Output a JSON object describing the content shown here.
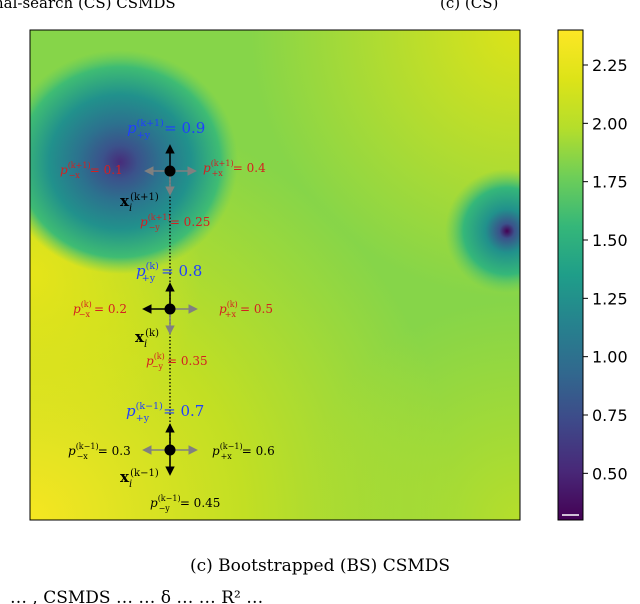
{
  "top_clip": {
    "left_text": "nal-search (CS) CSMDS",
    "right_text": "(c)         (CS)"
  },
  "colorbar": {
    "ticks": [
      "2.25",
      "2.00",
      "1.75",
      "1.50",
      "1.25",
      "1.00",
      "0.75",
      "0.50"
    ],
    "tick_values": [
      2.25,
      2.0,
      1.75,
      1.5,
      1.25,
      1.0,
      0.75,
      0.5
    ],
    "range": [
      0.3,
      2.4
    ],
    "colormap": "viridis"
  },
  "annotations": {
    "k_plus_1": {
      "p_up": "p",
      "p_up_sup": "(k+1)",
      "p_up_sub": "+y",
      "p_up_val": "= 0.9",
      "p_left": "p",
      "p_left_sup": "(k+1)",
      "p_left_sub": "−x",
      "p_left_val": "= 0.1",
      "p_right": "p",
      "p_right_sup": "(k+1)",
      "p_right_sub": "+x",
      "p_right_val": "= 0.4",
      "p_down": "p",
      "p_down_sup": "(k+1)",
      "p_down_sub": "−y",
      "p_down_val": "= 0.25",
      "x_label": "x",
      "x_sub": "i",
      "x_sup": "(k+1)"
    },
    "k": {
      "p_up": "p",
      "p_up_sup": "(k)",
      "p_up_sub": "+y",
      "p_up_val": "= 0.8",
      "p_left": "p",
      "p_left_sup": "(k)",
      "p_left_sub": "−x",
      "p_left_val": "= 0.2",
      "p_right": "p",
      "p_right_sup": "(k)",
      "p_right_sub": "+x",
      "p_right_val": "= 0.5",
      "p_down": "p",
      "p_down_sup": "(k)",
      "p_down_sub": "−y",
      "p_down_val": "= 0.35",
      "x_label": "x",
      "x_sub": "i",
      "x_sup": "(k)"
    },
    "k_minus_1": {
      "p_up": "p",
      "p_up_sup": "(k−1)",
      "p_up_sub": "+y",
      "p_up_val": "= 0.7",
      "p_left": "p",
      "p_left_sup": "(k−1)",
      "p_left_sub": "−x",
      "p_left_val": "= 0.3",
      "p_right": "p",
      "p_right_sup": "(k−1)",
      "p_right_sub": "+x",
      "p_right_val": "= 0.6",
      "p_down": "p",
      "p_down_sup": "(k−1)",
      "p_down_sub": "−y",
      "p_down_val": "= 0.45",
      "x_label": "x",
      "x_sub": "i",
      "x_sup": "(k−1)"
    }
  },
  "colors": {
    "blue_label": "#1f3fff",
    "red_label": "#d42020",
    "black_label": "#000000",
    "chosen_arrow": "#000000",
    "other_arrow": "#808080"
  },
  "caption": "(c) Bootstrapped (BS) CSMDS",
  "bottom_clip": "…      ,    CSMDS    …   …    δ        …   …   R²   …"
}
